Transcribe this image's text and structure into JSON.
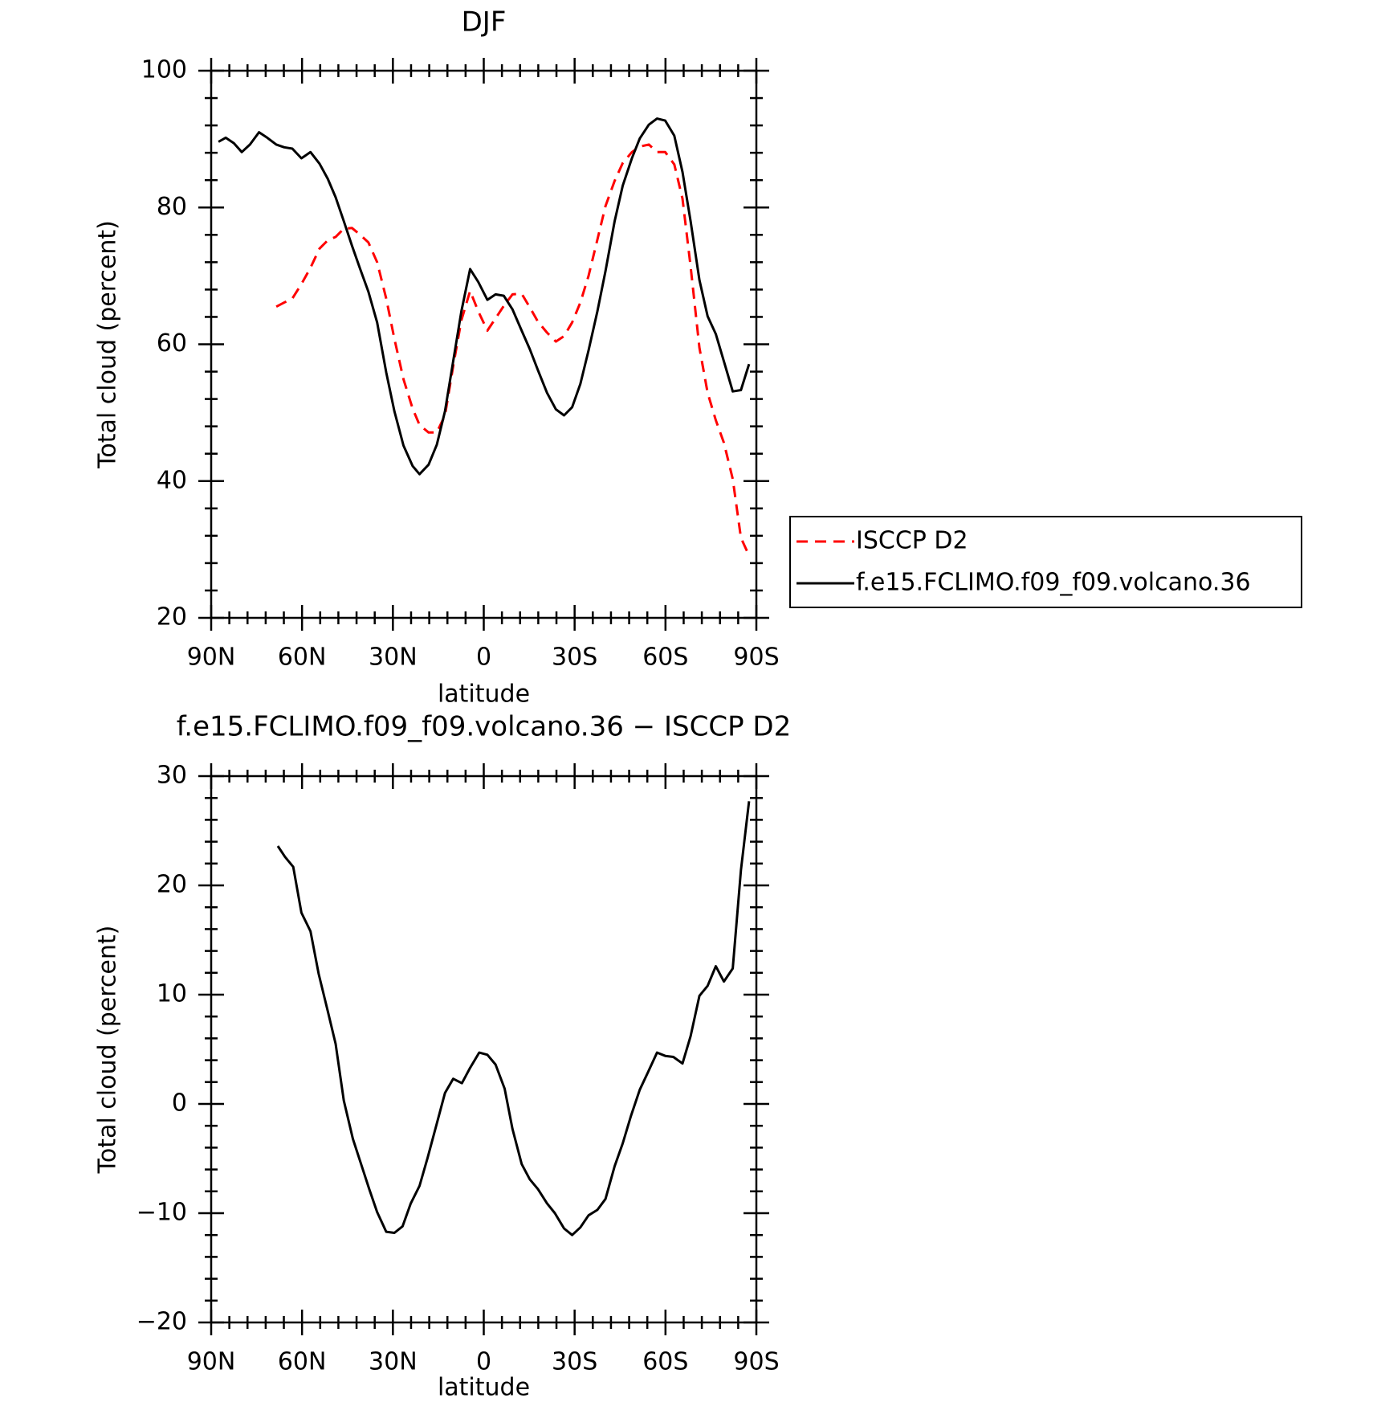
{
  "chart_data": [
    {
      "type": "line",
      "title": "DJF",
      "xlabel": "latitude",
      "ylabel": "Total cloud (percent)",
      "xlim": [
        90,
        -90
      ],
      "xticks": [
        {
          "value": 90,
          "label": "90N"
        },
        {
          "value": 60,
          "label": "60N"
        },
        {
          "value": 30,
          "label": "30N"
        },
        0,
        {
          "value": -30,
          "label": "30S"
        },
        {
          "value": -60,
          "label": "60S"
        },
        {
          "value": -90,
          "label": "90S"
        }
      ],
      "ylim": [
        20,
        100
      ],
      "yticks": [
        20,
        40,
        60,
        80,
        100
      ],
      "legend": "outside-right",
      "x": [
        87.6,
        85.2,
        82.5,
        79.9,
        77.2,
        74.2,
        71.5,
        68.5,
        65.9,
        63.2,
        60.2,
        57.2,
        54.2,
        51.5,
        48.9,
        46.2,
        43.5,
        40.8,
        38.1,
        35.2,
        32.2,
        29.5,
        26.5,
        23.5,
        21.2,
        18.2,
        15.5,
        12.8,
        10.1,
        7.4,
        4.5,
        1.8,
        -1.2,
        -3.9,
        -6.6,
        -9.5,
        -12.5,
        -15.2,
        -17.9,
        -20.9,
        -23.8,
        -26.5,
        -29.2,
        -31.9,
        -34.6,
        -37.5,
        -40.2,
        -43.2,
        -45.9,
        -48.9,
        -51.5,
        -54.5,
        -57.2,
        -59.9,
        -62.9,
        -65.6,
        -68.3,
        -71.2,
        -73.9,
        -76.6,
        -79.3,
        -82.2,
        -84.9,
        -87.6
      ],
      "series": [
        {
          "name": "ISCCP D2",
          "color": "#ff0000",
          "dash": true,
          "values": [
            null,
            null,
            null,
            null,
            null,
            null,
            null,
            65.5,
            66.1,
            66.7,
            68.8,
            71.2,
            74.0,
            75.2,
            75.7,
            76.9,
            77.0,
            76.0,
            74.9,
            72.0,
            66.7,
            60.8,
            54.9,
            50.6,
            48.2,
            47.1,
            47.1,
            49.6,
            56.8,
            63.5,
            67.8,
            64.8,
            62.0,
            63.8,
            65.6,
            67.3,
            67.4,
            65.4,
            63.3,
            61.7,
            60.4,
            61.2,
            63.2,
            66.1,
            70.0,
            75.3,
            80.2,
            83.9,
            86.5,
            88.1,
            88.9,
            89.2,
            88.1,
            88.1,
            86.3,
            81.3,
            71.4,
            59.5,
            52.9,
            48.9,
            45.6,
            40.3,
            31.7,
            29.1
          ]
        },
        {
          "name": "f.e15.FCLIMO.f09_f09.volcano.36",
          "color": "#000000",
          "dash": false,
          "values": [
            89.6,
            90.2,
            89.4,
            88.1,
            89.2,
            91.0,
            90.2,
            89.2,
            88.8,
            88.6,
            87.2,
            88.1,
            86.4,
            84.2,
            81.5,
            78.0,
            74.4,
            71.0,
            67.7,
            63.2,
            55.9,
            50.2,
            45.2,
            42.2,
            41.0,
            42.4,
            45.3,
            50.2,
            57.5,
            64.8,
            71.0,
            69.1,
            66.5,
            67.3,
            67.1,
            65.1,
            62.0,
            59.3,
            56.2,
            52.9,
            50.5,
            49.6,
            50.8,
            54.2,
            59.1,
            64.8,
            70.7,
            78.0,
            83.2,
            87.2,
            90.1,
            92.1,
            93.0,
            92.7,
            90.5,
            85.2,
            78.0,
            69.4,
            64.1,
            61.5,
            57.5,
            53.1,
            53.3,
            57.1
          ]
        }
      ]
    },
    {
      "type": "line",
      "title": "f.e15.FCLIMO.f09_f09.volcano.36 − ISCCP D2",
      "xlabel": "latitude",
      "ylabel": "Total cloud (percent)",
      "xlim": [
        90,
        -90
      ],
      "xticks": [
        {
          "value": 90,
          "label": "90N"
        },
        {
          "value": 60,
          "label": "60N"
        },
        {
          "value": 30,
          "label": "30N"
        },
        0,
        {
          "value": -30,
          "label": "30S"
        },
        {
          "value": -60,
          "label": "60S"
        },
        {
          "value": -90,
          "label": "90S"
        }
      ],
      "ylim": [
        -20,
        30
      ],
      "yticks": [
        {
          "value": -20,
          "label": "−20"
        },
        {
          "value": -10,
          "label": "−10"
        },
        0,
        10,
        20,
        30
      ],
      "x": [
        68.0,
        65.6,
        62.9,
        60.2,
        57.2,
        54.5,
        51.5,
        48.9,
        46.2,
        43.2,
        40.5,
        37.8,
        35.2,
        32.2,
        29.5,
        26.8,
        24.1,
        21.2,
        18.5,
        15.5,
        12.8,
        10.1,
        7.2,
        4.5,
        1.5,
        -1.2,
        -3.9,
        -6.9,
        -9.5,
        -12.5,
        -15.2,
        -17.9,
        -20.9,
        -23.5,
        -26.5,
        -29.2,
        -31.9,
        -34.6,
        -37.5,
        -40.2,
        -43.2,
        -45.9,
        -48.6,
        -51.5,
        -54.2,
        -57.2,
        -59.9,
        -62.6,
        -65.6,
        -68.3,
        -71.2,
        -73.9,
        -76.6,
        -79.3,
        -82.2,
        -84.9,
        -87.6
      ],
      "series": [
        {
          "color": "#000000",
          "dash": false,
          "values": [
            23.6,
            22.6,
            21.7,
            17.5,
            15.8,
            11.9,
            8.5,
            5.5,
            0.3,
            -3.2,
            -5.5,
            -7.8,
            -9.9,
            -11.7,
            -11.8,
            -11.2,
            -9.1,
            -7.5,
            -4.9,
            -1.8,
            1.0,
            2.3,
            1.9,
            3.3,
            4.7,
            4.5,
            3.6,
            1.4,
            -2.3,
            -5.5,
            -6.9,
            -7.8,
            -9.1,
            -10.0,
            -11.4,
            -12.0,
            -11.3,
            -10.2,
            -9.7,
            -8.7,
            -5.7,
            -3.6,
            -1.1,
            1.3,
            2.9,
            4.7,
            4.4,
            4.3,
            3.7,
            6.2,
            9.9,
            10.8,
            12.6,
            11.2,
            12.4,
            21.4,
            27.7
          ]
        }
      ]
    }
  ]
}
